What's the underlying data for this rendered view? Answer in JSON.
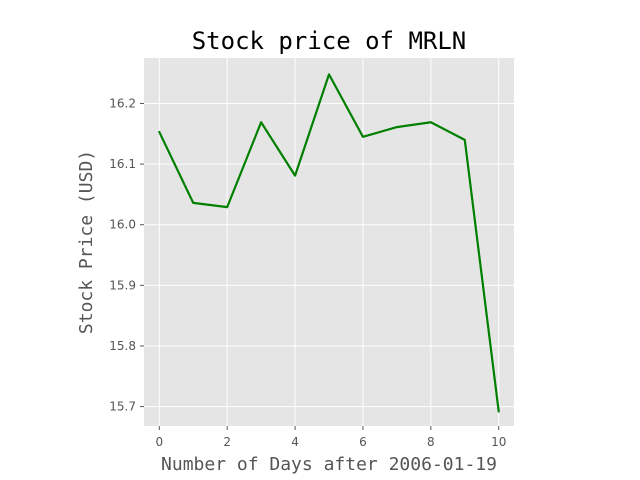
{
  "chart_data": {
    "type": "line",
    "title": "Stock price of MRLN",
    "xlabel": "Number of Days after 2006-01-19",
    "ylabel": "Stock Price (USD)",
    "x": [
      0,
      1,
      2,
      3,
      4,
      5,
      6,
      7,
      8,
      9,
      10
    ],
    "series": [
      {
        "values": [
          16.153,
          16.036,
          16.029,
          16.169,
          16.081,
          16.248,
          16.145,
          16.161,
          16.169,
          16.14,
          15.692
        ]
      }
    ],
    "xlim": [
      -0.45,
      10.45
    ],
    "ylim": [
      15.668,
      16.275
    ],
    "xticks": [
      "0",
      "2",
      "4",
      "6",
      "8",
      "10"
    ],
    "yticks": [
      "15.7",
      "15.8",
      "15.9",
      "16.0",
      "16.1",
      "16.2"
    ],
    "grid": true,
    "colors": {
      "line": "#008000",
      "plot_background": "#e5e5e5",
      "grid": "#ffffff"
    }
  }
}
